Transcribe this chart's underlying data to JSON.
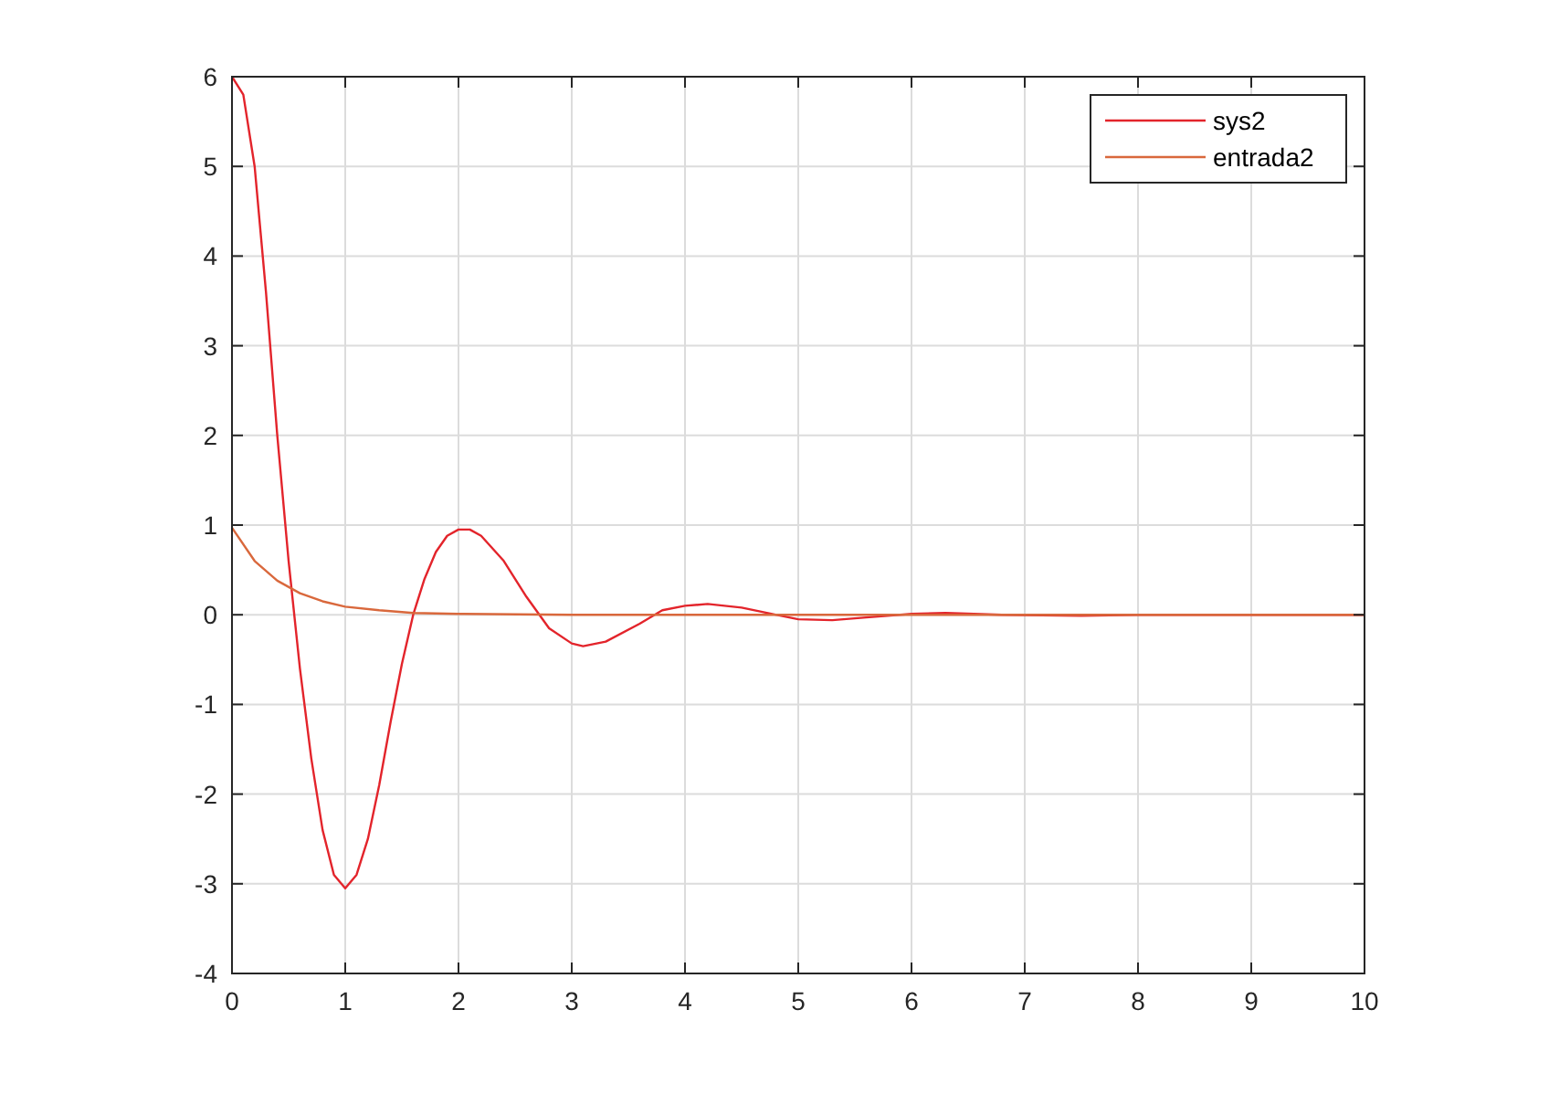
{
  "chart_data": {
    "type": "line",
    "xlim": [
      0,
      10
    ],
    "ylim": [
      -4,
      6
    ],
    "xticks": [
      0,
      1,
      2,
      3,
      4,
      5,
      6,
      7,
      8,
      9,
      10
    ],
    "yticks": [
      -4,
      -3,
      -2,
      -1,
      0,
      1,
      2,
      3,
      4,
      5,
      6
    ],
    "grid": true,
    "legend": "top right",
    "series": [
      {
        "name": "sys2",
        "color": "#e3242b",
        "x": [
          0,
          0.1,
          0.2,
          0.3,
          0.4,
          0.5,
          0.6,
          0.7,
          0.8,
          0.9,
          1.0,
          1.1,
          1.2,
          1.3,
          1.4,
          1.5,
          1.6,
          1.7,
          1.8,
          1.9,
          2.0,
          2.1,
          2.2,
          2.4,
          2.6,
          2.8,
          3.0,
          3.1,
          3.3,
          3.6,
          3.8,
          4.0,
          4.2,
          4.5,
          4.8,
          5.0,
          5.3,
          5.6,
          6.0,
          6.3,
          6.8,
          7.5,
          8,
          10
        ],
        "values": [
          6,
          5.8,
          5.0,
          3.6,
          2.0,
          0.6,
          -0.6,
          -1.6,
          -2.4,
          -2.9,
          -3.05,
          -2.9,
          -2.5,
          -1.9,
          -1.2,
          -0.55,
          0,
          0.4,
          0.7,
          0.88,
          0.95,
          0.95,
          0.88,
          0.6,
          0.2,
          -0.15,
          -0.32,
          -0.35,
          -0.3,
          -0.1,
          0.05,
          0.1,
          0.12,
          0.08,
          0,
          -0.05,
          -0.06,
          -0.03,
          0.01,
          0.02,
          0,
          -0.01,
          0,
          0
        ]
      },
      {
        "name": "entrada2",
        "color": "#d9683c",
        "x": [
          0,
          0.2,
          0.4,
          0.6,
          0.8,
          1.0,
          1.3,
          1.6,
          2,
          3,
          10
        ],
        "values": [
          0.97,
          0.6,
          0.38,
          0.24,
          0.15,
          0.09,
          0.05,
          0.02,
          0.01,
          0,
          0
        ]
      }
    ]
  }
}
